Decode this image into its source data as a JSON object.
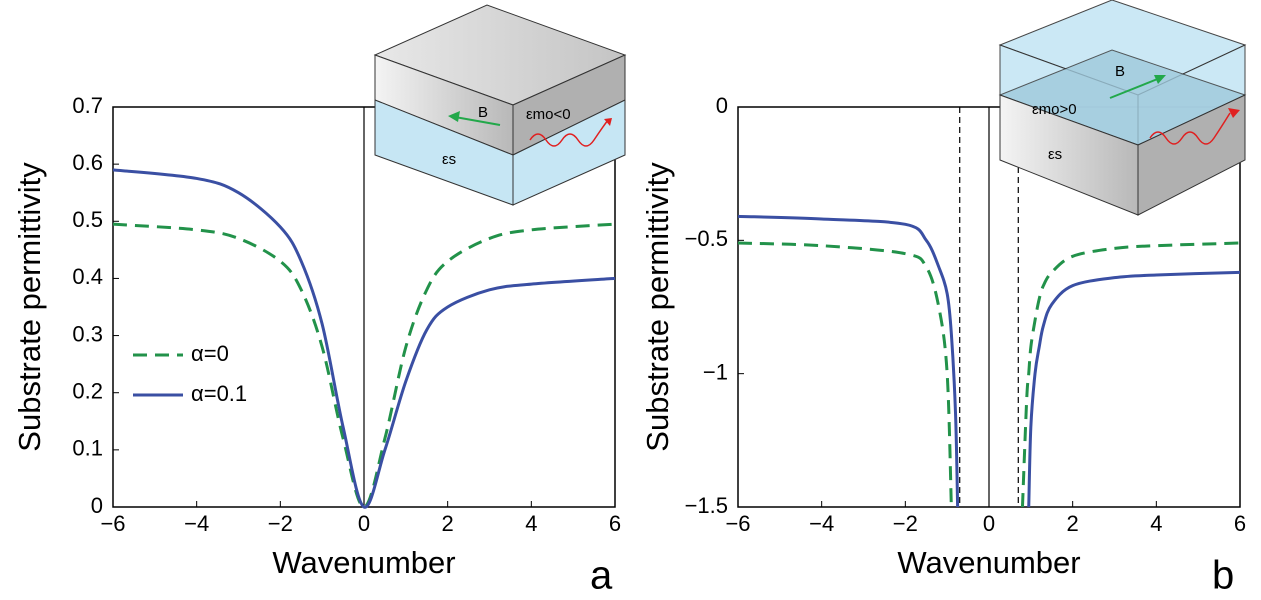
{
  "chart_data": [
    {
      "type": "line",
      "panel_label": "a",
      "xlabel": "Wavenumber",
      "ylabel": "Substrate permittivity",
      "x": [
        -6,
        -4,
        -3,
        -2,
        -1.5,
        -1,
        -0.5,
        0,
        0.5,
        1,
        1.5,
        2,
        3,
        4,
        6
      ],
      "xlim": [
        -6,
        6
      ],
      "xticks": [
        {
          "value": -6,
          "label": "−6"
        },
        {
          "value": -4,
          "label": "−4"
        },
        {
          "value": -2,
          "label": "−2"
        },
        0,
        2,
        4,
        6
      ],
      "ylim": [
        0,
        0.7
      ],
      "yticks": [
        0,
        0.1,
        0.2,
        0.3,
        0.4,
        0.5,
        0.6,
        0.7
      ],
      "legend": "lower left",
      "series": [
        {
          "name": "α=0",
          "color": "#22924a",
          "dash": true,
          "values": [
            0.495,
            0.485,
            0.47,
            0.43,
            0.38,
            0.28,
            0.12,
            0,
            0.12,
            0.28,
            0.38,
            0.43,
            0.47,
            0.485,
            0.495
          ]
        },
        {
          "name": "α=0.1",
          "color": "#3a4fa3",
          "dash": false,
          "values": [
            0.59,
            0.575,
            0.55,
            0.49,
            0.43,
            0.32,
            0.14,
            0,
            0.1,
            0.22,
            0.31,
            0.35,
            0.38,
            0.39,
            0.4
          ]
        }
      ],
      "inset": {
        "field_label": "B",
        "layer_label": "εmo<0",
        "substrate_label": "εs"
      }
    },
    {
      "type": "line",
      "panel_label": "b",
      "xlabel": "Wavenumber",
      "ylabel": "Substrate permittivity",
      "x": [
        -6,
        -4,
        -2,
        -1.5,
        -1.2,
        -1,
        -0.9,
        -0.8,
        -0.75,
        0.8,
        0.9,
        0.95,
        1,
        1.1,
        1.2,
        1.3,
        1.5,
        2,
        3,
        4,
        6
      ],
      "xlim": [
        -6,
        6
      ],
      "xticks": [
        {
          "value": -6,
          "label": "−6"
        },
        {
          "value": -4,
          "label": "−4"
        },
        {
          "value": -2,
          "label": "−2"
        },
        0,
        2,
        4,
        6
      ],
      "ylim": [
        -1.5,
        0
      ],
      "yticks": [
        {
          "value": -1.5,
          "label": "−1.5"
        },
        {
          "value": -1,
          "label": "−1"
        },
        {
          "value": -0.5,
          "label": "−0.5"
        },
        0
      ],
      "vlines": [
        -0.7,
        0.7
      ],
      "series": [
        {
          "color": "#22924a",
          "dash": true,
          "values": [
            -0.51,
            -0.52,
            -0.55,
            -0.6,
            -0.75,
            -1.0,
            -1.5,
            null,
            null,
            -1.5,
            -1.1,
            -1.0,
            -0.9,
            -0.8,
            -0.72,
            -0.67,
            -0.62,
            -0.56,
            -0.53,
            -0.52,
            -0.51
          ]
        },
        {
          "color": "#3a4fa3",
          "dash": false,
          "values": [
            -0.41,
            -0.42,
            -0.44,
            -0.5,
            -0.6,
            -0.7,
            -0.85,
            -1.15,
            -1.5,
            null,
            null,
            -1.5,
            -1.2,
            -1.0,
            -0.9,
            -0.82,
            -0.74,
            -0.67,
            -0.64,
            -0.63,
            -0.62
          ]
        }
      ],
      "inset": {
        "field_label": "B",
        "layer_label": "εmo>0",
        "substrate_label": "εs"
      }
    }
  ]
}
